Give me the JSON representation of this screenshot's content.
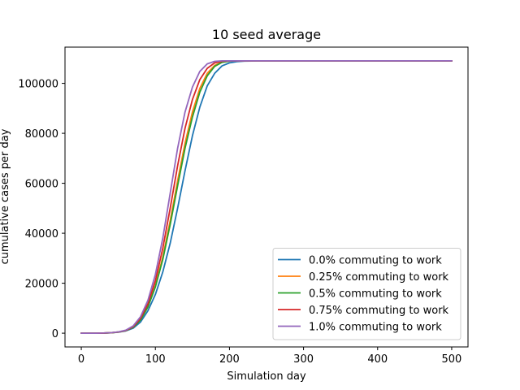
{
  "chart_data": {
    "type": "line",
    "title": "10 seed average",
    "xlabel": "Simulation day",
    "ylabel": "cumulative cases per day",
    "xlim": [
      -22,
      522
    ],
    "ylim": [
      -5500,
      114500
    ],
    "xticks": [
      0,
      100,
      200,
      300,
      400,
      500
    ],
    "yticks": [
      0,
      20000,
      40000,
      60000,
      80000,
      100000
    ],
    "grid": false,
    "legend_position": "bottom-right",
    "x": [
      0,
      10,
      20,
      30,
      40,
      50,
      60,
      70,
      80,
      90,
      100,
      110,
      120,
      130,
      140,
      150,
      160,
      170,
      180,
      190,
      200,
      210,
      220,
      230,
      240,
      250,
      300,
      350,
      400,
      450,
      500
    ],
    "series": [
      {
        "name": "0.0% commuting to work",
        "color": "#1f77b4",
        "values": [
          0,
          0,
          0,
          50,
          150,
          400,
          900,
          2000,
          4500,
          9000,
          15500,
          24500,
          36000,
          50000,
          65000,
          79000,
          90500,
          99000,
          104000,
          107000,
          108200,
          108700,
          108900,
          108950,
          109000,
          109000,
          109000,
          109000,
          109000,
          109000,
          109000
        ]
      },
      {
        "name": "0.25% commuting to work",
        "color": "#ff7f0e",
        "values": [
          0,
          0,
          0,
          50,
          170,
          450,
          1050,
          2400,
          5400,
          10800,
          19000,
          30500,
          45000,
          61000,
          76000,
          88500,
          98000,
          104000,
          107200,
          108500,
          108900,
          109000,
          109000,
          109000,
          109000,
          109000,
          109000,
          109000,
          109000,
          109000,
          109000
        ]
      },
      {
        "name": "0.5% commuting to work",
        "color": "#2ca02c",
        "values": [
          0,
          0,
          0,
          50,
          170,
          450,
          1050,
          2400,
          5300,
          10500,
          18500,
          29500,
          43500,
          59000,
          74000,
          86500,
          96500,
          103000,
          106800,
          108400,
          108900,
          109000,
          109000,
          109000,
          109000,
          109000,
          109000,
          109000,
          109000,
          109000,
          109000
        ]
      },
      {
        "name": "0.75% commuting to work",
        "color": "#d62728",
        "values": [
          0,
          0,
          0,
          50,
          180,
          480,
          1100,
          2600,
          5900,
          11800,
          21000,
          34000,
          50000,
          67000,
          82000,
          93500,
          101500,
          106000,
          108200,
          108800,
          109000,
          109000,
          109000,
          109000,
          109000,
          109000,
          109000,
          109000,
          109000,
          109000,
          109000
        ]
      },
      {
        "name": "1.0% commuting to work",
        "color": "#9467bd",
        "values": [
          0,
          0,
          0,
          60,
          200,
          520,
          1200,
          2900,
          6600,
          13200,
          23500,
          38000,
          56000,
          74000,
          88500,
          98500,
          104800,
          107800,
          108800,
          109000,
          109000,
          109000,
          109000,
          109000,
          109000,
          109000,
          109000,
          109000,
          109000,
          109000,
          109000
        ]
      }
    ]
  }
}
